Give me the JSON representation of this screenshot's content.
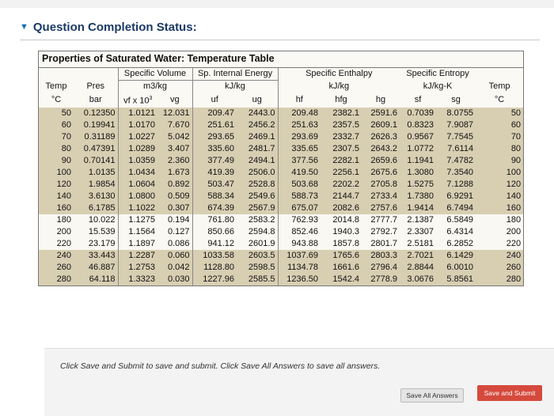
{
  "status": {
    "title": "Question Completion Status:"
  },
  "table": {
    "title": "Properties of Saturated Water: Temperature Table",
    "groups": {
      "spec_volume": "Specific Volume",
      "internal_energy": "Sp. Internal Energy",
      "enthalpy": "Specific Enthalpy",
      "entropy": "Specific Entropy"
    },
    "units": {
      "temp": "Temp",
      "pres": "Pres",
      "spec_volume": "m3/kg",
      "internal_energy": "kJ/kg",
      "enthalpy": "kJ/kg",
      "entropy": "kJ/kg-K",
      "temp_right": "Temp"
    },
    "columns": {
      "temp": "°C",
      "pres": "bar",
      "vf": "vf x 10",
      "vf_exp": "3",
      "vg": "vg",
      "uf": "uf",
      "ug": "ug",
      "hf": "hf",
      "hfg": "hfg",
      "hg": "hg",
      "sf": "sf",
      "sg": "sg",
      "temp_right": "°C"
    },
    "rows": [
      [
        "50",
        "0.12350",
        "1.0121",
        "12.031",
        "209.47",
        "2443.0",
        "209.48",
        "2382.1",
        "2591.6",
        "0.7039",
        "8.0755",
        "50"
      ],
      [
        "60",
        "0.19941",
        "1.0170",
        "7.670",
        "251.61",
        "2456.2",
        "251.63",
        "2357.5",
        "2609.1",
        "0.8323",
        "7.9087",
        "60"
      ],
      [
        "70",
        "0.31189",
        "1.0227",
        "5.042",
        "293.65",
        "2469.1",
        "293.69",
        "2332.7",
        "2626.3",
        "0.9567",
        "7.7545",
        "70"
      ],
      [
        "80",
        "0.47391",
        "1.0289",
        "3.407",
        "335.60",
        "2481.7",
        "335.65",
        "2307.5",
        "2643.2",
        "1.0772",
        "7.6114",
        "80"
      ],
      [
        "90",
        "0.70141",
        "1.0359",
        "2.360",
        "377.49",
        "2494.1",
        "377.56",
        "2282.1",
        "2659.6",
        "1.1941",
        "7.4782",
        "90"
      ],
      [
        "100",
        "1.0135",
        "1.0434",
        "1.673",
        "419.39",
        "2506.0",
        "419.50",
        "2256.1",
        "2675.6",
        "1.3080",
        "7.3540",
        "100"
      ],
      [
        "120",
        "1.9854",
        "1.0604",
        "0.892",
        "503.47",
        "2528.8",
        "503.68",
        "2202.2",
        "2705.8",
        "1.5275",
        "7.1288",
        "120"
      ],
      [
        "140",
        "3.6130",
        "1.0800",
        "0.509",
        "588.34",
        "2549.6",
        "588.73",
        "2144.7",
        "2733.4",
        "1.7380",
        "6.9291",
        "140"
      ],
      [
        "160",
        "6.1785",
        "1.1022",
        "0.307",
        "674.39",
        "2567.9",
        "675.07",
        "2082.6",
        "2757.6",
        "1.9414",
        "6.7494",
        "160"
      ],
      [
        "180",
        "10.022",
        "1.1275",
        "0.194",
        "761.80",
        "2583.2",
        "762.93",
        "2014.8",
        "2777.7",
        "2.1387",
        "6.5849",
        "180"
      ],
      [
        "200",
        "15.539",
        "1.1564",
        "0.127",
        "850.66",
        "2594.8",
        "852.46",
        "1940.3",
        "2792.7",
        "2.3307",
        "6.4314",
        "200"
      ],
      [
        "220",
        "23.179",
        "1.1897",
        "0.086",
        "941.12",
        "2601.9",
        "943.88",
        "1857.8",
        "2801.7",
        "2.5181",
        "6.2852",
        "220"
      ],
      [
        "240",
        "33.443",
        "1.2287",
        "0.060",
        "1033.58",
        "2603.5",
        "1037.69",
        "1765.6",
        "2803.3",
        "2.7021",
        "6.1429",
        "240"
      ],
      [
        "260",
        "46.887",
        "1.2753",
        "0.042",
        "1128.80",
        "2598.5",
        "1134.78",
        "1661.6",
        "2796.4",
        "2.8844",
        "6.0010",
        "260"
      ],
      [
        "280",
        "64.118",
        "1.3323",
        "0.030",
        "1227.96",
        "2585.5",
        "1236.50",
        "1542.4",
        "2778.9",
        "3.0676",
        "5.8561",
        "280"
      ]
    ],
    "shaded_rows": [
      0,
      1,
      2,
      3,
      4,
      5,
      6,
      7,
      8,
      12,
      13,
      14
    ]
  },
  "footer": {
    "instructions": "Click Save and Submit to save and submit. Click Save All Answers to save all answers.",
    "save_all_label": "Save All Answers",
    "submit_label": "Save and Submit"
  },
  "colors": {
    "accent": "#d54a3d",
    "shade": "#d8ceb2",
    "title": "#1a3a66"
  }
}
